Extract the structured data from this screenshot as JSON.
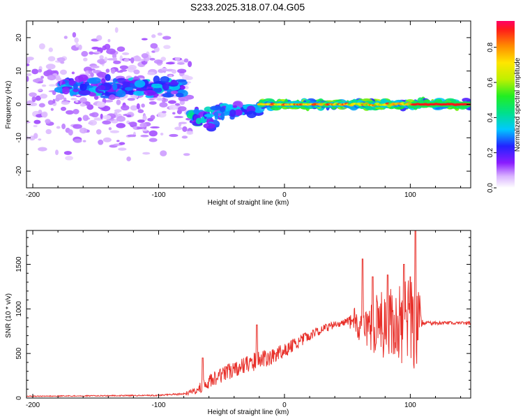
{
  "figure_title": "S233.2025.318.07.04.G05",
  "colors": {
    "snr_line": "#e8302a",
    "main_band": "#ff2020",
    "frame": "#000000"
  },
  "chart_data": [
    {
      "type": "heatmap",
      "title": "",
      "xlabel": "Height of straight line (km)",
      "ylabel": "Frequency (Hz)",
      "xlim": [
        -205,
        148
      ],
      "ylim": [
        -25,
        25
      ],
      "x_ticks": [
        -200,
        -100,
        0,
        100
      ],
      "y_ticks": [
        -20,
        -10,
        0,
        10,
        20
      ],
      "colorbar": {
        "label": "Normalized spectral amplitude",
        "range": [
          0,
          0.95
        ],
        "ticks": [
          0.0,
          0.2,
          0.4,
          0.6,
          0.8
        ],
        "tick_labels": [
          "0.0",
          "0.2",
          "0.4",
          "0.6",
          "0.8"
        ]
      },
      "main_band": {
        "frequency_hz": 0,
        "dense_from_km": -20,
        "dense_to_km": 148,
        "peak_amplitude": 0.95
      },
      "structure": [
        {
          "x_from": -205,
          "x_to": -75,
          "f_center": 3,
          "f_spread": 25,
          "amplitude": 0.1
        },
        {
          "x_from": -180,
          "x_to": -80,
          "f_center": 5,
          "f_spread": 4,
          "amplitude": 0.3
        },
        {
          "x_from": -75,
          "x_to": -55,
          "f_center": -4,
          "f_spread": 4,
          "amplitude": 0.35
        },
        {
          "x_from": -55,
          "x_to": -20,
          "f_center": -2,
          "f_spread": 3,
          "amplitude": 0.3
        },
        {
          "x_from": -20,
          "x_to": 148,
          "f_center": 0,
          "f_spread": 1.5,
          "amplitude": 0.5
        }
      ]
    },
    {
      "type": "line",
      "title": "",
      "xlabel": "Height of straight line (km)",
      "ylabel": "SNR (10 * v/v)",
      "xlim": [
        -205,
        148
      ],
      "ylim": [
        0,
        1880
      ],
      "x_ticks": [
        -200,
        -100,
        0,
        100
      ],
      "y_ticks": [
        0,
        500,
        1000,
        1500
      ],
      "series": [
        {
          "name": "SNR",
          "envelope_x": [
            -205,
            -150,
            -100,
            -80,
            -70,
            -60,
            -50,
            -40,
            -30,
            -20,
            -10,
            0,
            10,
            20,
            30,
            40,
            50,
            60,
            70,
            80,
            90,
            100,
            105,
            110,
            120,
            130,
            140,
            148
          ],
          "envelope_y": [
            20,
            25,
            30,
            45,
            90,
            180,
            260,
            320,
            380,
            420,
            470,
            530,
            620,
            700,
            770,
            820,
            860,
            850,
            830,
            840,
            830,
            850,
            860,
            840,
            840,
            845,
            840,
            840
          ],
          "noise": [
            5,
            6,
            8,
            15,
            50,
            80,
            90,
            90,
            100,
            110,
            90,
            80,
            70,
            60,
            50,
            40,
            35,
            250,
            350,
            400,
            420,
            500,
            600,
            20,
            20,
            20,
            20,
            20
          ],
          "peaks": [
            {
              "x": 62,
              "y": 1560
            },
            {
              "x": 70,
              "y": 1360
            },
            {
              "x": 82,
              "y": 1380
            },
            {
              "x": 95,
              "y": 1500
            },
            {
              "x": 100,
              "y": 1360
            },
            {
              "x": 104,
              "y": 1880
            },
            {
              "x": -22,
              "y": 820
            },
            {
              "x": -65,
              "y": 450
            }
          ]
        }
      ]
    }
  ]
}
